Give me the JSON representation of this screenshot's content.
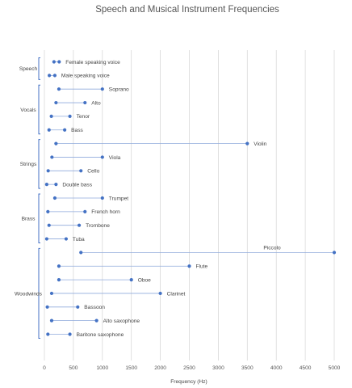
{
  "chart_data": {
    "type": "dumbbell",
    "title": "Speech and Musical Instrument Frequencies",
    "xlabel": "Frequency (Hz)",
    "ylabel": "",
    "xlim": [
      0,
      5000
    ],
    "xticks": [
      0,
      500,
      1000,
      1500,
      2000,
      2500,
      3000,
      3500,
      4000,
      4500,
      5000
    ],
    "grid": true,
    "groups": [
      {
        "name": "Speech",
        "items": [
          {
            "label": "Female speaking voice",
            "low": 165,
            "high": 255
          },
          {
            "label": "Male speaking voice",
            "low": 85,
            "high": 180
          }
        ]
      },
      {
        "name": "Vocals",
        "items": [
          {
            "label": "Soprano",
            "low": 250,
            "high": 1000
          },
          {
            "label": "Alto",
            "low": 200,
            "high": 700
          },
          {
            "label": "Tenor",
            "low": 120,
            "high": 440
          },
          {
            "label": "Bass",
            "low": 80,
            "high": 350
          }
        ]
      },
      {
        "name": "Strings",
        "items": [
          {
            "label": "Violin",
            "low": 200,
            "high": 3500
          },
          {
            "label": "Viola",
            "low": 130,
            "high": 1000
          },
          {
            "label": "Cello",
            "low": 65,
            "high": 630
          },
          {
            "label": "Double bass",
            "low": 40,
            "high": 200
          }
        ]
      },
      {
        "name": "Brass",
        "items": [
          {
            "label": "Trumpet",
            "low": 180,
            "high": 1000
          },
          {
            "label": "French horn",
            "low": 60,
            "high": 700
          },
          {
            "label": "Trombone",
            "low": 80,
            "high": 600
          },
          {
            "label": "Tuba",
            "low": 40,
            "high": 375
          }
        ]
      },
      {
        "name": "Woodwinds",
        "items": [
          {
            "label": "Piccolo",
            "low": 630,
            "high": 5000
          },
          {
            "label": "Flute",
            "low": 250,
            "high": 2500
          },
          {
            "label": "Oboe",
            "low": 250,
            "high": 1500
          },
          {
            "label": "Clarinet",
            "low": 125,
            "high": 2000
          },
          {
            "label": "Bassoon",
            "low": 50,
            "high": 575
          },
          {
            "label": "Alto saxophone",
            "low": 125,
            "high": 900
          },
          {
            "label": "Baritone saxophone",
            "low": 60,
            "high": 440
          }
        ]
      }
    ]
  },
  "colors": {
    "dot": "#4472c4",
    "range_line": "#8faadc",
    "gridline": "#d9d9d9",
    "bracket": "#4472c4",
    "text": "#444444"
  }
}
